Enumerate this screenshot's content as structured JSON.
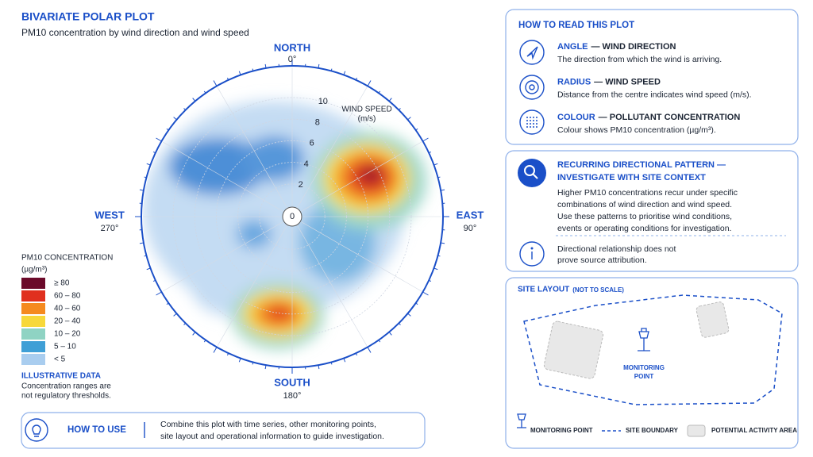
{
  "header": {
    "title": "BIVARIATE POLAR PLOT",
    "subtitle": "PM10 concentration by wind direction and wind speed"
  },
  "polar": {
    "directions": [
      {
        "name": "NORTH",
        "degrees": "0°"
      },
      {
        "name": "EAST",
        "degrees": "90°"
      },
      {
        "name": "SOUTH",
        "degrees": "180°"
      },
      {
        "name": "WEST",
        "degrees": "270°"
      }
    ],
    "radius_label": [
      "WIND SPEED",
      "(m/s)"
    ],
    "radial_ticks": [
      0,
      2,
      4,
      6,
      8,
      10
    ]
  },
  "legend": {
    "title": [
      "PM10 CONCENTRATION",
      "(µg/m³)"
    ],
    "items": [
      {
        "label": "≥ 80",
        "color": "#6b0a2a"
      },
      {
        "label": "60 – 80",
        "color": "#e0301e"
      },
      {
        "label": "40 – 60",
        "color": "#f58a1f"
      },
      {
        "label": "20 – 40",
        "color": "#f7d83a"
      },
      {
        "label": "10 – 20",
        "color": "#8fd3c3"
      },
      {
        "label": "5 – 10",
        "color": "#3f9fd6"
      },
      {
        "label": "< 5",
        "color": "#a9cdef"
      }
    ],
    "note_title": "ILLUSTRATIVE DATA",
    "note": [
      "Concentration ranges are",
      "not regulatory thresholds."
    ]
  },
  "how_to_read": {
    "title": "HOW TO READ THIS PLOT",
    "items": [
      {
        "key": "ANGLE",
        "rest": "— WIND DIRECTION",
        "text": "The direction from which the wind is arriving."
      },
      {
        "key": "RADIUS",
        "rest": "— WIND SPEED",
        "text": "Distance from the centre indicates wind speed (m/s)."
      },
      {
        "key": "COLOUR",
        "rest": "— POLLUTANT CONCENTRATION",
        "text": "Colour shows PM10 concentration (µg/m³)."
      }
    ]
  },
  "pattern": {
    "heading": [
      "RECURRING DIRECTIONAL PATTERN —",
      "INVESTIGATE WITH SITE CONTEXT"
    ],
    "body": [
      "Higher PM10 concentrations recur under specific",
      "combinations of wind direction and wind speed.",
      "Use these patterns to prioritise wind conditions,",
      "events or operating conditions for investigation."
    ],
    "caveat": [
      "Directional relationship does not",
      "prove source attribution."
    ]
  },
  "site": {
    "title": "SITE LAYOUT",
    "title_note": "(NOT TO SCALE)",
    "monitor_label": [
      "MONITORING",
      "POINT"
    ],
    "legend": [
      "MONITORING POINT",
      "SITE BOUNDARY",
      "POTENTIAL ACTIVITY AREA"
    ]
  },
  "how_to_use": {
    "title": "HOW TO USE",
    "text": [
      "Combine this plot with time series, other monitoring points,",
      "site layout and operational information to guide investigation."
    ]
  }
}
